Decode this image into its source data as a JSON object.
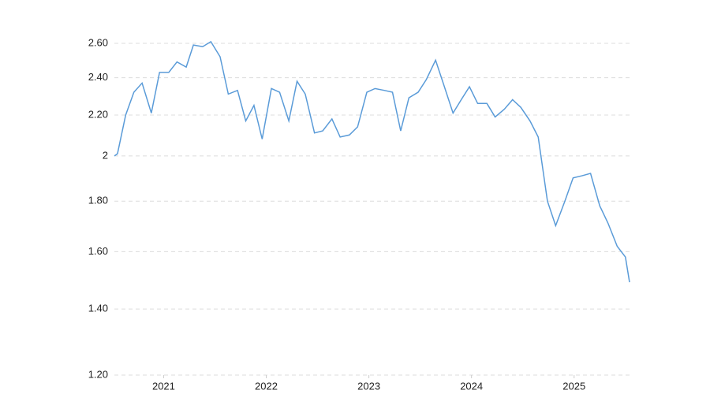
{
  "chart_data": {
    "type": "line",
    "x": [
      2020.52,
      2020.55,
      2020.63,
      2020.71,
      2020.79,
      2020.88,
      2020.96,
      2021.05,
      2021.13,
      2021.22,
      2021.29,
      2021.38,
      2021.46,
      2021.55,
      2021.63,
      2021.72,
      2021.8,
      2021.88,
      2021.96,
      2022.05,
      2022.13,
      2022.22,
      2022.3,
      2022.38,
      2022.47,
      2022.55,
      2022.64,
      2022.72,
      2022.81,
      2022.89,
      2022.98,
      2023.06,
      2023.15,
      2023.23,
      2023.31,
      2023.39,
      2023.48,
      2023.56,
      2023.65,
      2023.73,
      2023.82,
      2023.9,
      2023.98,
      2024.06,
      2024.15,
      2024.23,
      2024.32,
      2024.4,
      2024.48,
      2024.57,
      2024.65,
      2024.74,
      2024.82,
      2024.91,
      2024.99,
      2025.08,
      2025.16,
      2025.25,
      2025.33,
      2025.42,
      2025.5,
      2025.54
    ],
    "series": [
      {
        "color": "#5a9bd8",
        "values": [
          2.0,
          2.01,
          2.2,
          2.32,
          2.37,
          2.21,
          2.43,
          2.43,
          2.49,
          2.46,
          2.59,
          2.58,
          2.61,
          2.52,
          2.31,
          2.33,
          2.17,
          2.25,
          2.08,
          2.34,
          2.32,
          2.17,
          2.38,
          2.31,
          2.11,
          2.12,
          2.18,
          2.09,
          2.1,
          2.14,
          2.32,
          2.34,
          2.33,
          2.32,
          2.12,
          2.29,
          2.32,
          2.39,
          2.5,
          2.36,
          2.21,
          2.28,
          2.35,
          2.26,
          2.26,
          2.19,
          2.23,
          2.28,
          2.24,
          2.17,
          2.09,
          1.8,
          1.7,
          1.8,
          1.9,
          1.91,
          1.92,
          1.78,
          1.71,
          1.62,
          1.58,
          1.49
        ]
      }
    ],
    "xlim": [
      2020.52,
      2025.54
    ],
    "xticks": [
      2021,
      2022,
      2023,
      2024,
      2025
    ],
    "ylim": [
      1.2,
      2.6
    ],
    "yticks": [
      {
        "value": 1.2,
        "label": "1.20"
      },
      {
        "value": 1.4,
        "label": "1.40"
      },
      {
        "value": 1.6,
        "label": "1.60"
      },
      {
        "value": 1.8,
        "label": "1.80"
      },
      2,
      {
        "value": 2.2,
        "label": "2.20"
      },
      {
        "value": 2.4,
        "label": "2.40"
      },
      {
        "value": 2.6,
        "label": "2.60"
      }
    ],
    "log_y": true,
    "grid": true
  }
}
